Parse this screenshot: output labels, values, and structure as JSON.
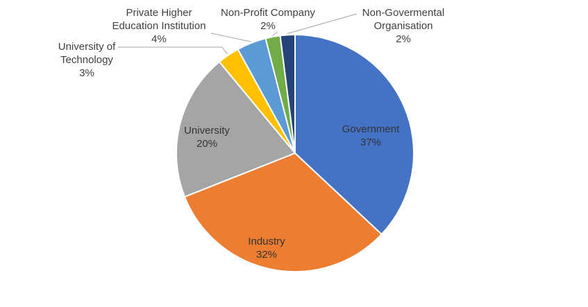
{
  "chart_data": {
    "type": "pie",
    "title": "",
    "slices": [
      {
        "label": "Government",
        "value": 37,
        "display": "37%",
        "color": "#4472C4"
      },
      {
        "label": "Industry",
        "value": 32,
        "display": "32%",
        "color": "#ED7D31"
      },
      {
        "label": "University",
        "value": 20,
        "display": "20%",
        "color": "#A5A5A5"
      },
      {
        "label": "University of Technology",
        "value": 3,
        "display": "3%",
        "color": "#FFC000"
      },
      {
        "label": "Private Higher Education Institution",
        "value": 4,
        "display": "4%",
        "color": "#5B9BD5"
      },
      {
        "label": "Non-Profit Company",
        "value": 2,
        "display": "2%",
        "color": "#70AD47"
      },
      {
        "label": "Non-Govermental Organisation",
        "value": 2,
        "display": "2%",
        "color": "#264478"
      }
    ],
    "labels": {
      "government": {
        "name": "Government",
        "pct": "37%"
      },
      "industry": {
        "name": "Industry",
        "pct": "32%"
      },
      "university": {
        "name": "University",
        "pct": "20%"
      },
      "uot": {
        "line1": "University of",
        "line2": "Technology",
        "pct": "3%"
      },
      "private": {
        "line1": "Private Higher",
        "line2": "Education Institution",
        "pct": "4%"
      },
      "nonprofit": {
        "line1": "Non-Profit Company",
        "pct": "2%"
      },
      "ngo": {
        "line1": "Non-Govermental",
        "line2": "Organisation",
        "pct": "2%"
      }
    }
  }
}
